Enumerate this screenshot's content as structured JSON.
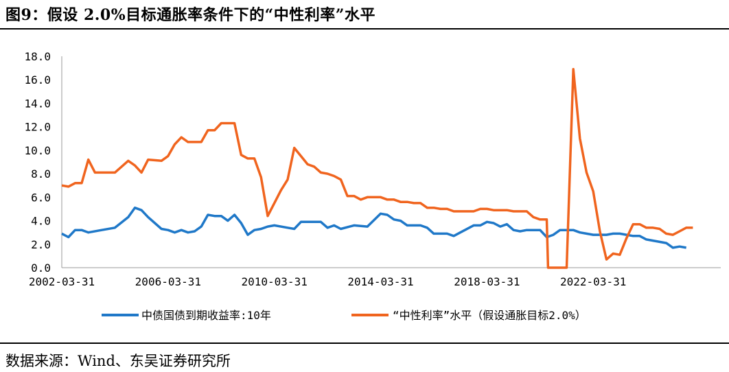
{
  "title": "图9：假设 2.0%目标通胀率条件下的“中性利率”水平",
  "source": "数据来源：Wind、东吴证券研究所",
  "chart_data": {
    "type": "line",
    "ylim": [
      0,
      18
    ],
    "yticks": [
      "0.0",
      "2.0",
      "4.0",
      "6.0",
      "8.0",
      "10.0",
      "12.0",
      "14.0",
      "16.0",
      "18.0"
    ],
    "xlim": [
      2002.0,
      2026.8
    ],
    "xticks": [
      {
        "label": "2002-03-31",
        "x": 2002.0
      },
      {
        "label": "2006-03-31",
        "x": 2006.0
      },
      {
        "label": "2010-03-31",
        "x": 2010.0
      },
      {
        "label": "2014-03-31",
        "x": 2014.0
      },
      {
        "label": "2018-03-31",
        "x": 2018.0
      },
      {
        "label": "2022-03-31",
        "x": 2022.0
      }
    ],
    "grid": false,
    "legend_position": "bottom",
    "series": [
      {
        "name": "中债国债到期收益率:10年",
        "color": "#1f78c8",
        "points": [
          [
            2002.0,
            2.9
          ],
          [
            2002.25,
            2.6
          ],
          [
            2002.5,
            3.2
          ],
          [
            2002.75,
            3.2
          ],
          [
            2003.0,
            3.0
          ],
          [
            2003.5,
            3.2
          ],
          [
            2004.0,
            3.4
          ],
          [
            2004.5,
            4.3
          ],
          [
            2004.75,
            5.1
          ],
          [
            2005.0,
            4.9
          ],
          [
            2005.25,
            4.3
          ],
          [
            2005.75,
            3.3
          ],
          [
            2006.0,
            3.2
          ],
          [
            2006.25,
            3.0
          ],
          [
            2006.5,
            3.2
          ],
          [
            2006.75,
            3.0
          ],
          [
            2007.0,
            3.1
          ],
          [
            2007.25,
            3.5
          ],
          [
            2007.5,
            4.5
          ],
          [
            2007.75,
            4.4
          ],
          [
            2008.0,
            4.4
          ],
          [
            2008.25,
            4.0
          ],
          [
            2008.5,
            4.5
          ],
          [
            2008.75,
            3.8
          ],
          [
            2009.0,
            2.8
          ],
          [
            2009.25,
            3.2
          ],
          [
            2009.5,
            3.3
          ],
          [
            2009.75,
            3.5
          ],
          [
            2010.0,
            3.6
          ],
          [
            2010.5,
            3.4
          ],
          [
            2010.75,
            3.3
          ],
          [
            2011.0,
            3.9
          ],
          [
            2011.25,
            3.9
          ],
          [
            2011.5,
            3.9
          ],
          [
            2011.75,
            3.9
          ],
          [
            2012.0,
            3.4
          ],
          [
            2012.25,
            3.6
          ],
          [
            2012.5,
            3.3
          ],
          [
            2013.0,
            3.6
          ],
          [
            2013.5,
            3.5
          ],
          [
            2014.0,
            4.6
          ],
          [
            2014.25,
            4.5
          ],
          [
            2014.5,
            4.1
          ],
          [
            2014.75,
            4.0
          ],
          [
            2015.0,
            3.6
          ],
          [
            2015.5,
            3.6
          ],
          [
            2015.75,
            3.4
          ],
          [
            2016.0,
            2.9
          ],
          [
            2016.5,
            2.9
          ],
          [
            2016.75,
            2.7
          ],
          [
            2017.0,
            3.0
          ],
          [
            2017.5,
            3.6
          ],
          [
            2017.75,
            3.6
          ],
          [
            2018.0,
            3.9
          ],
          [
            2018.25,
            3.8
          ],
          [
            2018.5,
            3.5
          ],
          [
            2018.75,
            3.7
          ],
          [
            2019.0,
            3.2
          ],
          [
            2019.25,
            3.1
          ],
          [
            2019.5,
            3.2
          ],
          [
            2019.75,
            3.2
          ],
          [
            2020.0,
            3.2
          ],
          [
            2020.25,
            2.6
          ],
          [
            2020.5,
            2.8
          ],
          [
            2020.75,
            3.2
          ],
          [
            2021.0,
            3.2
          ],
          [
            2021.25,
            3.2
          ],
          [
            2021.5,
            3.0
          ],
          [
            2021.75,
            2.9
          ],
          [
            2022.0,
            2.8
          ],
          [
            2022.5,
            2.8
          ],
          [
            2022.75,
            2.9
          ],
          [
            2023.0,
            2.9
          ],
          [
            2023.25,
            2.8
          ],
          [
            2023.5,
            2.7
          ],
          [
            2023.75,
            2.7
          ],
          [
            2024.0,
            2.4
          ],
          [
            2024.25,
            2.3
          ],
          [
            2024.5,
            2.2
          ],
          [
            2024.75,
            2.1
          ],
          [
            2025.0,
            1.7
          ],
          [
            2025.25,
            1.8
          ],
          [
            2025.5,
            1.7
          ]
        ]
      },
      {
        "name": "“中性利率”水平（假设通胀目标2.0%）",
        "color": "#f0641e",
        "points": [
          [
            2002.0,
            7.0
          ],
          [
            2002.25,
            6.9
          ],
          [
            2002.5,
            7.2
          ],
          [
            2002.75,
            7.2
          ],
          [
            2003.0,
            9.2
          ],
          [
            2003.25,
            8.1
          ],
          [
            2003.75,
            8.1
          ],
          [
            2004.0,
            8.1
          ],
          [
            2004.5,
            9.1
          ],
          [
            2004.75,
            8.7
          ],
          [
            2005.0,
            8.1
          ],
          [
            2005.25,
            9.2
          ],
          [
            2005.75,
            9.1
          ],
          [
            2006.0,
            9.5
          ],
          [
            2006.25,
            10.5
          ],
          [
            2006.5,
            11.1
          ],
          [
            2006.75,
            10.7
          ],
          [
            2007.0,
            10.7
          ],
          [
            2007.25,
            10.7
          ],
          [
            2007.5,
            11.7
          ],
          [
            2007.75,
            11.7
          ],
          [
            2008.0,
            12.3
          ],
          [
            2008.25,
            12.3
          ],
          [
            2008.5,
            12.3
          ],
          [
            2008.75,
            9.6
          ],
          [
            2009.0,
            9.3
          ],
          [
            2009.25,
            9.3
          ],
          [
            2009.5,
            7.7
          ],
          [
            2009.75,
            4.4
          ],
          [
            2010.0,
            5.5
          ],
          [
            2010.25,
            6.6
          ],
          [
            2010.5,
            7.5
          ],
          [
            2010.75,
            10.2
          ],
          [
            2011.0,
            9.5
          ],
          [
            2011.25,
            8.8
          ],
          [
            2011.5,
            8.6
          ],
          [
            2011.75,
            8.1
          ],
          [
            2012.0,
            8.0
          ],
          [
            2012.25,
            7.8
          ],
          [
            2012.5,
            7.5
          ],
          [
            2012.75,
            6.1
          ],
          [
            2013.0,
            6.1
          ],
          [
            2013.25,
            5.8
          ],
          [
            2013.5,
            6.0
          ],
          [
            2014.0,
            6.0
          ],
          [
            2014.25,
            5.8
          ],
          [
            2014.5,
            5.8
          ],
          [
            2014.75,
            5.6
          ],
          [
            2015.0,
            5.6
          ],
          [
            2015.25,
            5.5
          ],
          [
            2015.5,
            5.5
          ],
          [
            2015.75,
            5.1
          ],
          [
            2016.0,
            5.1
          ],
          [
            2016.25,
            5.0
          ],
          [
            2016.5,
            5.0
          ],
          [
            2016.75,
            4.8
          ],
          [
            2017.0,
            4.8
          ],
          [
            2017.5,
            4.8
          ],
          [
            2017.75,
            5.0
          ],
          [
            2018.0,
            5.0
          ],
          [
            2018.25,
            4.9
          ],
          [
            2018.5,
            4.9
          ],
          [
            2018.75,
            4.9
          ],
          [
            2019.0,
            4.8
          ],
          [
            2019.5,
            4.8
          ],
          [
            2019.75,
            4.3
          ],
          [
            2020.0,
            4.1
          ],
          [
            2020.25,
            4.1
          ],
          [
            2020.3,
            0.0
          ],
          [
            2021.0,
            0.0
          ],
          [
            2021.25,
            16.9
          ],
          [
            2021.5,
            11.0
          ],
          [
            2021.75,
            8.1
          ],
          [
            2022.0,
            6.5
          ],
          [
            2022.25,
            3.1
          ],
          [
            2022.5,
            0.7
          ],
          [
            2022.75,
            1.2
          ],
          [
            2023.0,
            1.1
          ],
          [
            2023.25,
            2.5
          ],
          [
            2023.5,
            3.7
          ],
          [
            2023.75,
            3.7
          ],
          [
            2024.0,
            3.4
          ],
          [
            2024.25,
            3.4
          ],
          [
            2024.5,
            3.3
          ],
          [
            2024.75,
            2.9
          ],
          [
            2025.0,
            2.8
          ],
          [
            2025.25,
            3.1
          ],
          [
            2025.5,
            3.4
          ],
          [
            2025.75,
            3.4
          ]
        ]
      }
    ]
  }
}
